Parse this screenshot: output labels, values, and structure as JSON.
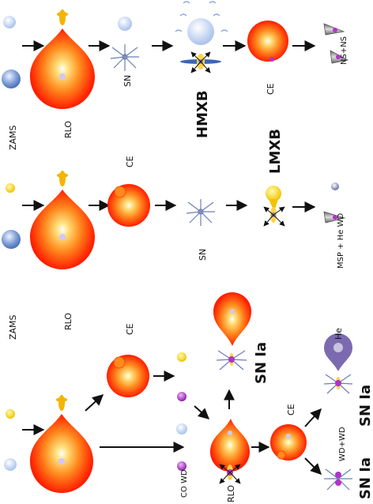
{
  "labels": {
    "zams": "ZAMS",
    "rlo": "RLO",
    "ce": "CE",
    "sn": "SN",
    "hmxb": "HMXB",
    "lmxb": "LMXB",
    "ns_ns": "NS+NS",
    "msp_he_wd": "MSP + He WD",
    "co_wd": "CO WD",
    "wd_wd": "WD+WD",
    "he": "He",
    "sn_ia": "SN Ia"
  },
  "colors": {
    "star_outer": "#ff2a00",
    "star_mid": "#ff7b1c",
    "star_inner": "#ffd24a",
    "blue_star": "#6e8fd0",
    "light_blue": "#b9cdee",
    "yellow_star": "#f7d200",
    "wd_purple": "#b034c8",
    "ns_gray": "#8a8ab8"
  }
}
